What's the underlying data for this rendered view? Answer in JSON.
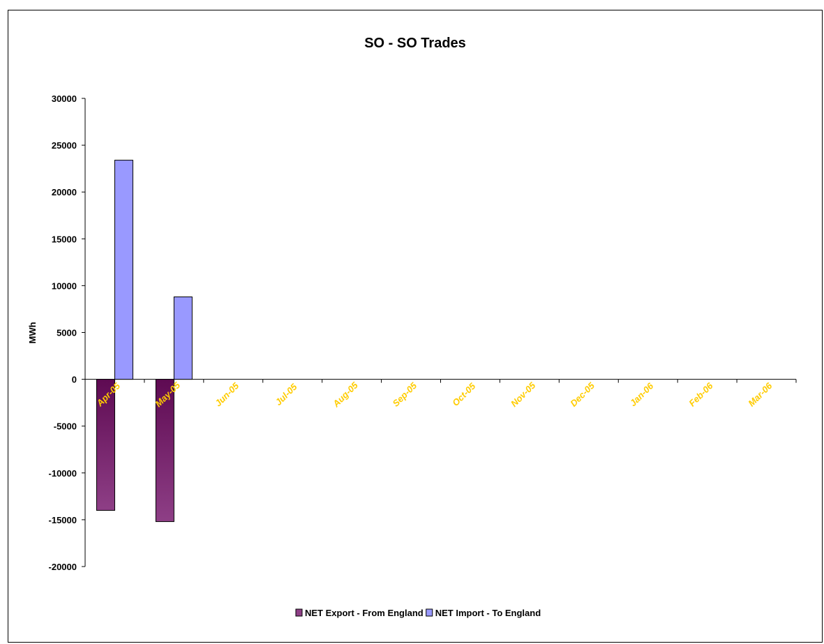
{
  "chart_data": {
    "type": "bar",
    "title": "SO - SO Trades",
    "xlabel": "",
    "ylabel": "MWh",
    "ylim": [
      -20000,
      30000
    ],
    "ytick_step": 5000,
    "grid": false,
    "legend_position": "bottom",
    "categories": [
      "Apr-05",
      "May-05",
      "Jun-05",
      "Jul-05",
      "Aug-05",
      "Sep-05",
      "Oct-05",
      "Nov-05",
      "Dec-05",
      "Jan-06",
      "Feb-06",
      "Mar-06"
    ],
    "series": [
      {
        "name": "NET Export  - From England",
        "color_top": "#5e0a52",
        "color_bottom": "#8e3f86",
        "values": [
          -14000,
          -15200,
          0,
          0,
          0,
          0,
          0,
          0,
          0,
          0,
          0,
          0
        ]
      },
      {
        "name": "NET Import - To England",
        "color_top": "#9999ff",
        "color_bottom": "#9999ff",
        "values": [
          23400,
          8800,
          0,
          0,
          0,
          0,
          0,
          0,
          0,
          0,
          0,
          0
        ]
      }
    ],
    "tick_label_color": "#ffcc00"
  }
}
